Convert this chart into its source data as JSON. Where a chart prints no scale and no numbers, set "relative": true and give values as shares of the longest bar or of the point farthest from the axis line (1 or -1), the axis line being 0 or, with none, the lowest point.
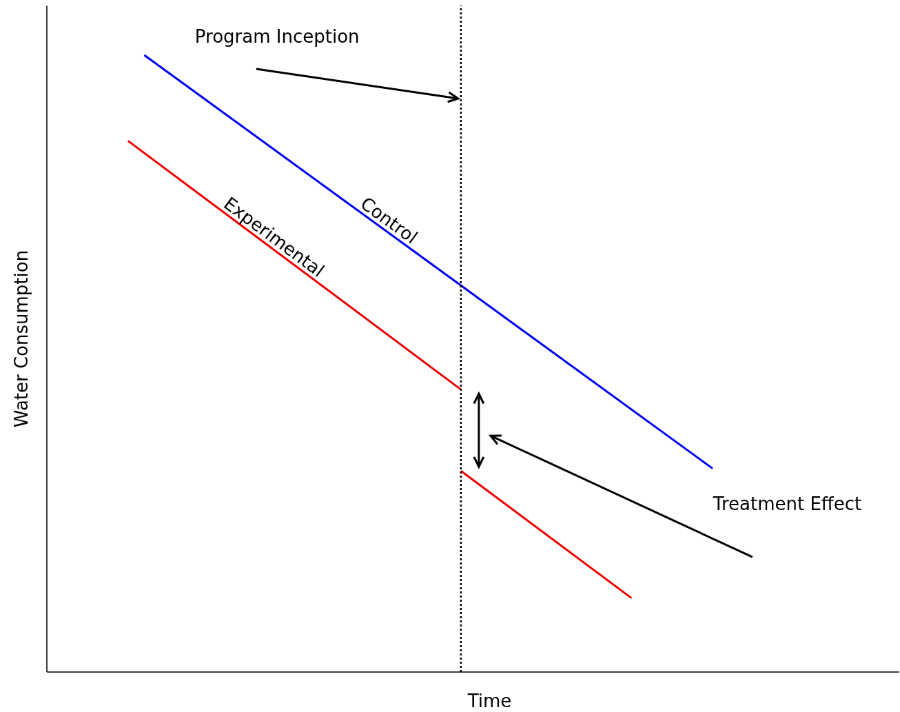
{
  "chart_data": {
    "type": "line",
    "relative": true,
    "xlabel": "Time",
    "ylabel": "Water Consumption",
    "legend": false,
    "marker": "none",
    "line_style": "solid",
    "categories": [
      null,
      null,
      null,
      null,
      null,
      null,
      null,
      null,
      null,
      null,
      null,
      null,
      null,
      null,
      null,
      null,
      null,
      null,
      null,
      null,
      null,
      null,
      null,
      null,
      null,
      null,
      null,
      null,
      null,
      null,
      null,
      null,
      null,
      null,
      null,
      null,
      null,
      null,
      null,
      null,
      null,
      null,
      null,
      null,
      null,
      null,
      null,
      null,
      null,
      null,
      null,
      null,
      null,
      null,
      null,
      null,
      null,
      null,
      null,
      null,
      null,
      null,
      null,
      null,
      null,
      null,
      null,
      null,
      null,
      null,
      null,
      null,
      null,
      null,
      null,
      null,
      null,
      null,
      null,
      null,
      null,
      null,
      null,
      null,
      null,
      null,
      null,
      null,
      null,
      null,
      null,
      null,
      null,
      null,
      null,
      null,
      null,
      null,
      null,
      null,
      null,
      null,
      null,
      null,
      null,
      null
    ],
    "series": [
      {
        "name": "Control",
        "color": "#0000ee",
        "values": [
          null,
          null,
          null,
          null,
          null,
          null,
          null,
          null,
          null,
          null,
          null,
          null,
          1.0,
          null,
          null,
          null,
          null,
          null,
          null,
          null,
          null,
          null,
          null,
          null,
          null,
          null,
          null,
          null,
          null,
          null,
          null,
          null,
          null,
          null,
          null,
          null,
          null,
          null,
          null,
          null,
          null,
          null,
          null,
          null,
          null,
          null,
          null,
          null,
          null,
          null,
          null,
          null,
          null,
          null,
          null,
          null,
          null,
          null,
          null,
          null,
          null,
          null,
          null,
          null,
          null,
          null,
          null,
          null,
          null,
          null,
          null,
          null,
          null,
          null,
          null,
          null,
          null,
          null,
          null,
          null,
          null,
          null,
          0.33,
          null,
          null,
          null,
          null,
          null,
          null,
          null,
          null,
          null,
          null,
          null,
          null,
          null,
          null,
          null,
          null,
          null,
          null,
          null,
          null,
          null,
          null,
          null
        ]
      },
      {
        "name": "Experimental",
        "color": "#ee0000",
        "values": [
          null,
          null,
          null,
          null,
          null,
          null,
          null,
          null,
          null,
          null,
          0.861,
          null,
          null,
          null,
          null,
          null,
          null,
          null,
          null,
          null,
          null,
          null,
          null,
          null,
          null,
          null,
          null,
          null,
          null,
          null,
          null,
          null,
          null,
          null,
          null,
          null,
          null,
          null,
          null,
          null,
          null,
          null,
          null,
          null,
          null,
          null,
          null,
          null,
          null,
          null,
          null,
          0.458,
          null,
          null,
          null,
          null,
          null,
          null,
          null,
          null,
          null,
          null,
          null,
          null,
          null,
          null,
          null,
          null,
          null,
          null,
          null,
          null,
          null,
          null,
          null,
          null,
          null,
          null,
          null,
          null,
          null,
          null,
          null,
          null,
          null,
          null,
          null,
          null,
          null,
          null,
          null,
          null,
          null,
          null,
          null,
          null,
          null,
          null,
          null,
          null,
          null,
          null,
          null,
          null,
          null,
          null
        ]
      },
      {
        "color": "#ee0000",
        "values": [
          null,
          null,
          null,
          null,
          null,
          null,
          null,
          null,
          null,
          null,
          null,
          null,
          null,
          null,
          null,
          null,
          null,
          null,
          null,
          null,
          null,
          null,
          null,
          null,
          null,
          null,
          null,
          null,
          null,
          null,
          null,
          null,
          null,
          null,
          null,
          null,
          null,
          null,
          null,
          null,
          null,
          null,
          null,
          null,
          null,
          null,
          null,
          null,
          null,
          null,
          null,
          0.326,
          null,
          null,
          null,
          null,
          null,
          null,
          null,
          null,
          null,
          null,
          null,
          null,
          null,
          null,
          null,
          null,
          null,
          null,
          null,
          null,
          0.12,
          null,
          null,
          null,
          null,
          null,
          null,
          null,
          null,
          null,
          null,
          null,
          null,
          null,
          null,
          null,
          null,
          null,
          null,
          null,
          null,
          null,
          null,
          null,
          null,
          null,
          null,
          null,
          null,
          null,
          null,
          null,
          null,
          null
        ]
      }
    ],
    "annotations": [
      "Program Inception",
      "Treatment Effect"
    ]
  }
}
